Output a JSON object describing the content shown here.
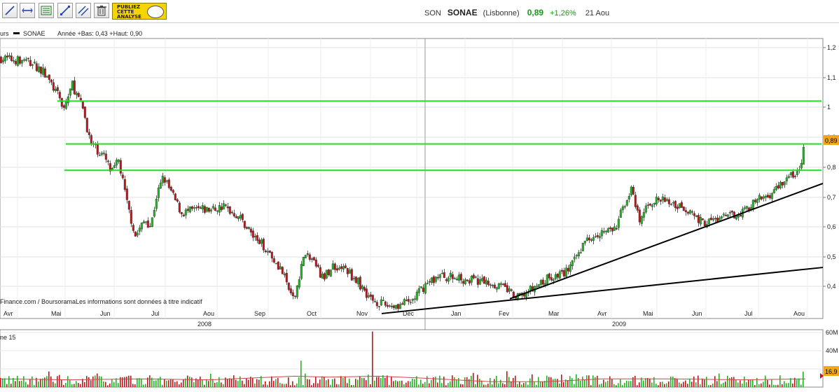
{
  "toolbar": {
    "tools": [
      {
        "icon": "line-tool-icon"
      },
      {
        "icon": "horizontal-line-tool-icon"
      },
      {
        "icon": "indicator-tool-icon"
      },
      {
        "icon": "trendline-tool-icon"
      },
      {
        "icon": "channel-tool-icon"
      },
      {
        "icon": "trash-icon"
      }
    ],
    "publish_label_1": "PUBLIEZ",
    "publish_label_2": "CETTE",
    "publish_label_3": "ANALYSE"
  },
  "quote": {
    "code": "SON",
    "symbol": "SONAE",
    "exchange": "(Lisbonne)",
    "price": "0,89",
    "change": "+1,26%",
    "date": "21 Aou"
  },
  "chart_header": {
    "prefix": "urs",
    "series_name": "SONAE",
    "stats": "Année +Bas: 0,43 +Haut: 0,90"
  },
  "source_text": "Finance.com / BoursoramaLes informations sont données à titre indicatif",
  "volume_label": "ne 15",
  "colors": {
    "up": "#22b522",
    "down": "#c0161b",
    "support_lines": "#22dd22",
    "trend_lines": "#000000",
    "volume_ma": "#d24545",
    "price_tag": "#f0a818"
  },
  "chart_data": {
    "type": "candlestick",
    "price_axis": {
      "ticks": [
        "1,2",
        "1,1",
        "1",
        "0,9",
        "0,8",
        "0,7",
        "0,6",
        "0,5",
        "0,4"
      ],
      "range": [
        0.37,
        1.22
      ]
    },
    "last_price_label": "0,89",
    "x_month_labels": [
      "Avr",
      "Mai",
      "Jun",
      "Jul",
      "Aou",
      "Sep",
      "Oct",
      "Nov",
      "Dec",
      "Jan",
      "Fev",
      "Mar",
      "Avr",
      "Mai",
      "Jun",
      "Jul",
      "Aou"
    ],
    "year_labels": [
      "2008",
      "2009"
    ],
    "price_anchors": [
      {
        "t": 0,
        "v": 1.16
      },
      {
        "t": 40,
        "v": 1.15
      },
      {
        "t": 60,
        "v": 1.12
      },
      {
        "t": 78,
        "v": 1.06
      },
      {
        "t": 90,
        "v": 1.01
      },
      {
        "t": 102,
        "v": 1.08
      },
      {
        "t": 118,
        "v": 1.0
      },
      {
        "t": 128,
        "v": 0.9
      },
      {
        "t": 148,
        "v": 0.86
      },
      {
        "t": 158,
        "v": 0.81
      },
      {
        "t": 168,
        "v": 0.85
      },
      {
        "t": 180,
        "v": 0.72
      },
      {
        "t": 192,
        "v": 0.62
      },
      {
        "t": 206,
        "v": 0.67
      },
      {
        "t": 214,
        "v": 0.65
      },
      {
        "t": 222,
        "v": 0.74
      },
      {
        "t": 232,
        "v": 0.8
      },
      {
        "t": 246,
        "v": 0.74
      },
      {
        "t": 258,
        "v": 0.69
      },
      {
        "t": 280,
        "v": 0.7
      },
      {
        "t": 300,
        "v": 0.7
      },
      {
        "t": 318,
        "v": 0.71
      },
      {
        "t": 340,
        "v": 0.68
      },
      {
        "t": 360,
        "v": 0.62
      },
      {
        "t": 380,
        "v": 0.58
      },
      {
        "t": 400,
        "v": 0.52
      },
      {
        "t": 418,
        "v": 0.42
      },
      {
        "t": 432,
        "v": 0.56
      },
      {
        "t": 445,
        "v": 0.55
      },
      {
        "t": 460,
        "v": 0.49
      },
      {
        "t": 474,
        "v": 0.53
      },
      {
        "t": 492,
        "v": 0.52
      },
      {
        "t": 510,
        "v": 0.48
      },
      {
        "t": 528,
        "v": 0.43
      },
      {
        "t": 548,
        "v": 0.41
      },
      {
        "t": 566,
        "v": 0.41
      },
      {
        "t": 585,
        "v": 0.42
      },
      {
        "t": 605,
        "v": 0.47
      },
      {
        "t": 625,
        "v": 0.5
      },
      {
        "t": 660,
        "v": 0.49
      },
      {
        "t": 700,
        "v": 0.48
      },
      {
        "t": 722,
        "v": 0.46
      },
      {
        "t": 736,
        "v": 0.43
      },
      {
        "t": 752,
        "v": 0.45
      },
      {
        "t": 780,
        "v": 0.49
      },
      {
        "t": 805,
        "v": 0.51
      },
      {
        "t": 818,
        "v": 0.54
      },
      {
        "t": 832,
        "v": 0.6
      },
      {
        "t": 848,
        "v": 0.63
      },
      {
        "t": 878,
        "v": 0.64
      },
      {
        "t": 888,
        "v": 0.71
      },
      {
        "t": 900,
        "v": 0.76
      },
      {
        "t": 912,
        "v": 0.66
      },
      {
        "t": 924,
        "v": 0.72
      },
      {
        "t": 940,
        "v": 0.73
      },
      {
        "t": 960,
        "v": 0.72
      },
      {
        "t": 982,
        "v": 0.7
      },
      {
        "t": 1002,
        "v": 0.66
      },
      {
        "t": 1020,
        "v": 0.67
      },
      {
        "t": 1040,
        "v": 0.68
      },
      {
        "t": 1062,
        "v": 0.7
      },
      {
        "t": 1082,
        "v": 0.73
      },
      {
        "t": 1100,
        "v": 0.75
      },
      {
        "t": 1118,
        "v": 0.79
      },
      {
        "t": 1134,
        "v": 0.81
      },
      {
        "t": 1142,
        "v": 0.82
      },
      {
        "t": 1148,
        "v": 0.89
      }
    ],
    "horizontal_lines": [
      {
        "v": 1.03,
        "from_t": 82
      },
      {
        "v": 0.9,
        "from_t": 94
      },
      {
        "v": 0.82,
        "from_t": 92
      }
    ],
    "trend_lines": [
      {
        "from": {
          "t": 545,
          "v": 0.385
        },
        "to": {
          "t": 1175,
          "v": 0.525
        }
      },
      {
        "from": {
          "t": 728,
          "v": 0.43
        },
        "to": {
          "t": 1175,
          "v": 0.78
        }
      }
    ],
    "volume_axis": {
      "ticks": [
        "60M",
        "40M",
        "20M"
      ],
      "range": [
        0,
        63
      ]
    },
    "volume_last_label": "16,9",
    "volume_spikes": [
      {
        "t": 430,
        "v": 29
      },
      {
        "t": 530,
        "v": 61
      },
      {
        "t": 547,
        "v": 13
      },
      {
        "t": 822,
        "v": 14
      },
      {
        "t": 1147,
        "v": 17
      }
    ],
    "volume_ma_anchors": [
      {
        "t": 0,
        "v": 9
      },
      {
        "t": 100,
        "v": 8
      },
      {
        "t": 200,
        "v": 9
      },
      {
        "t": 300,
        "v": 8
      },
      {
        "t": 420,
        "v": 12
      },
      {
        "t": 470,
        "v": 11
      },
      {
        "t": 540,
        "v": 12
      },
      {
        "t": 600,
        "v": 10
      },
      {
        "t": 700,
        "v": 6
      },
      {
        "t": 780,
        "v": 6
      },
      {
        "t": 860,
        "v": 9
      },
      {
        "t": 960,
        "v": 9
      },
      {
        "t": 1060,
        "v": 8
      },
      {
        "t": 1150,
        "v": 9
      }
    ]
  }
}
